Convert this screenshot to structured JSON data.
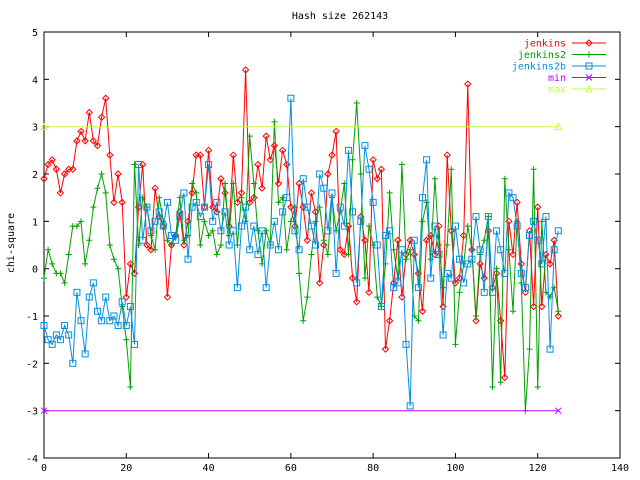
{
  "chart_data": {
    "type": "line",
    "title": "Hash size 262143",
    "xlabel": "",
    "ylabel": "chi-square",
    "xlim": [
      0,
      140
    ],
    "ylim": [
      -4,
      5
    ],
    "x_ticks": [
      0,
      20,
      40,
      60,
      80,
      100,
      120,
      140
    ],
    "y_ticks": [
      -4,
      -3,
      -2,
      -1,
      0,
      1,
      2,
      3,
      4,
      5
    ],
    "grid": false,
    "legend": "top-right",
    "series": [
      {
        "name": "jenkins",
        "color": "#ff0000",
        "marker": "diamond",
        "x": [
          0,
          1,
          2,
          3,
          4,
          5,
          6,
          7,
          8,
          9,
          10,
          11,
          12,
          13,
          14,
          15,
          16,
          17,
          18,
          19,
          20,
          21,
          22,
          23,
          24,
          25,
          26,
          27,
          28,
          29,
          30,
          31,
          32,
          33,
          34,
          35,
          36,
          37,
          38,
          39,
          40,
          41,
          42,
          43,
          44,
          45,
          46,
          47,
          48,
          49,
          50,
          51,
          52,
          53,
          54,
          55,
          56,
          57,
          58,
          59,
          60,
          61,
          62,
          63,
          64,
          65,
          66,
          67,
          68,
          69,
          70,
          71,
          72,
          73,
          74,
          75,
          76,
          77,
          78,
          79,
          80,
          81,
          82,
          83,
          84,
          85,
          86,
          87,
          88,
          89,
          90,
          91,
          92,
          93,
          94,
          95,
          96,
          97,
          98,
          99,
          100,
          101,
          102,
          103,
          104,
          105,
          106,
          107,
          108,
          109,
          110,
          111,
          112,
          113,
          114,
          115,
          116,
          117,
          118,
          119,
          120,
          121,
          122,
          123,
          124,
          125
        ],
        "y": [
          1.9,
          2.2,
          2.3,
          2.1,
          1.6,
          2.0,
          2.1,
          2.1,
          2.7,
          2.9,
          2.7,
          3.3,
          2.7,
          2.6,
          3.2,
          3.6,
          2.4,
          1.4,
          2.0,
          1.4,
          -0.6,
          0.1,
          -0.1,
          1.3,
          2.2,
          0.5,
          0.4,
          1.7,
          1.1,
          0.9,
          -0.6,
          0.5,
          0.7,
          1.2,
          0.5,
          1.0,
          1.6,
          2.4,
          2.4,
          1.3,
          2.5,
          1.3,
          1.2,
          1.9,
          1.6,
          0.9,
          2.4,
          1.4,
          1.6,
          4.2,
          1.4,
          1.5,
          2.2,
          1.7,
          2.8,
          2.3,
          2.6,
          1.8,
          2.5,
          2.2,
          1.3,
          0.9,
          1.8,
          1.3,
          0.6,
          1.6,
          1.2,
          -0.3,
          0.5,
          2.0,
          2.4,
          2.9,
          0.4,
          0.3,
          0.9,
          -0.2,
          -0.7,
          1.1,
          0.6,
          -0.5,
          2.3,
          1.9,
          2.1,
          -1.7,
          -1.1,
          -0.3,
          0.6,
          -0.6,
          0.3,
          0.6,
          0.3,
          -0.1,
          -0.9,
          0.6,
          0.7,
          0.3,
          0.9,
          -0.8,
          2.4,
          0.8,
          -0.3,
          -0.2,
          0.7,
          3.9,
          0.4,
          -1.1,
          0.1,
          -0.2,
          0.8,
          -0.4,
          -0.1,
          -1.1,
          -2.3,
          1.0,
          0.3,
          1.4,
          0.1,
          -0.5,
          0.8,
          -0.8,
          1.3,
          -0.8,
          0.3,
          0.1,
          0.6,
          -1.0
        ]
      },
      {
        "name": "jenkins2",
        "color": "#00a000",
        "marker": "plus",
        "x": [
          0,
          1,
          2,
          3,
          4,
          5,
          6,
          7,
          8,
          9,
          10,
          11,
          12,
          13,
          14,
          15,
          16,
          17,
          18,
          19,
          20,
          21,
          22,
          23,
          24,
          25,
          26,
          27,
          28,
          29,
          30,
          31,
          32,
          33,
          34,
          35,
          36,
          37,
          38,
          39,
          40,
          41,
          42,
          43,
          44,
          45,
          46,
          47,
          48,
          49,
          50,
          51,
          52,
          53,
          54,
          55,
          56,
          57,
          58,
          59,
          60,
          61,
          62,
          63,
          64,
          65,
          66,
          67,
          68,
          69,
          70,
          71,
          72,
          73,
          74,
          75,
          76,
          77,
          78,
          79,
          80,
          81,
          82,
          83,
          84,
          85,
          86,
          87,
          88,
          89,
          90,
          91,
          92,
          93,
          94,
          95,
          96,
          97,
          98,
          99,
          100,
          101,
          102,
          103,
          104,
          105,
          106,
          107,
          108,
          109,
          110,
          111,
          112,
          113,
          114,
          115,
          116,
          117,
          118,
          119,
          120,
          121,
          122,
          123,
          124,
          125
        ],
        "y": [
          -0.2,
          0.4,
          0.1,
          -0.1,
          -0.1,
          -0.3,
          0.3,
          0.9,
          0.9,
          1.0,
          0.1,
          0.6,
          1.3,
          1.7,
          2.0,
          1.6,
          0.5,
          0.2,
          0.0,
          -0.8,
          -1.5,
          -2.5,
          2.2,
          0.5,
          1.5,
          1.3,
          0.7,
          0.4,
          1.5,
          1.0,
          0.6,
          0.5,
          0.7,
          1.5,
          0.6,
          0.7,
          1.8,
          1.6,
          0.5,
          1.0,
          0.7,
          0.8,
          0.3,
          0.5,
          1.8,
          0.7,
          1.8,
          0.5,
          1.5,
          1.0,
          2.8,
          1.8,
          0.8,
          0.1,
          0.8,
          0.5,
          3.1,
          1.4,
          1.5,
          0.4,
          1.0,
          1.3,
          -0.1,
          -1.1,
          -0.6,
          0.3,
          1.0,
          1.3,
          0.6,
          0.3,
          1.5,
          0.8,
          1.2,
          1.8,
          0.3,
          2.3,
          3.5,
          2.0,
          -0.2,
          0.9,
          0.5,
          -0.6,
          -0.8,
          0.1,
          1.6,
          0.4,
          -0.2,
          2.2,
          0.2,
          0.4,
          -1.0,
          -1.1,
          1.0,
          1.4,
          0.2,
          1.9,
          0.5,
          -0.4,
          0.5,
          2.1,
          -1.6,
          -0.5,
          0.1,
          0.9,
          0.4,
          -1.0,
          0.3,
          0.6,
          1.1,
          -2.5,
          0.0,
          -2.4,
          1.9,
          0.4,
          -0.9,
          1.0,
          -0.3,
          -3.0,
          -1.7,
          2.1,
          -2.5,
          1.0,
          -0.5,
          -0.6,
          -0.4,
          -0.9
        ]
      },
      {
        "name": "jenkins2b",
        "color": "#0090e0",
        "marker": "square",
        "x": [
          0,
          1,
          2,
          3,
          4,
          5,
          6,
          7,
          8,
          9,
          10,
          11,
          12,
          13,
          14,
          15,
          16,
          17,
          18,
          19,
          20,
          21,
          22,
          23,
          24,
          25,
          26,
          27,
          28,
          29,
          30,
          31,
          32,
          33,
          34,
          35,
          36,
          37,
          38,
          39,
          40,
          41,
          42,
          43,
          44,
          45,
          46,
          47,
          48,
          49,
          50,
          51,
          52,
          53,
          54,
          55,
          56,
          57,
          58,
          59,
          60,
          61,
          62,
          63,
          64,
          65,
          66,
          67,
          68,
          69,
          70,
          71,
          72,
          73,
          74,
          75,
          76,
          77,
          78,
          79,
          80,
          81,
          82,
          83,
          84,
          85,
          86,
          87,
          88,
          89,
          90,
          91,
          92,
          93,
          94,
          95,
          96,
          97,
          98,
          99,
          100,
          101,
          102,
          103,
          104,
          105,
          106,
          107,
          108,
          109,
          110,
          111,
          112,
          113,
          114,
          115,
          116,
          117,
          118,
          119,
          120,
          121,
          122,
          123,
          124,
          125
        ],
        "y": [
          -1.2,
          -1.5,
          -1.6,
          -1.4,
          -1.5,
          -1.2,
          -1.4,
          -2.0,
          -0.5,
          -1.1,
          -1.8,
          -0.6,
          -0.3,
          -0.9,
          -1.1,
          -0.6,
          -1.1,
          -1.0,
          -1.2,
          -0.7,
          -1.2,
          -0.8,
          -1.6,
          2.2,
          0.6,
          1.3,
          0.8,
          1.0,
          1.2,
          0.9,
          1.4,
          0.7,
          0.6,
          1.1,
          1.6,
          0.2,
          1.3,
          1.4,
          1.1,
          1.3,
          2.2,
          1.0,
          1.4,
          0.8,
          1.2,
          0.5,
          0.8,
          -0.4,
          0.9,
          1.3,
          0.4,
          0.9,
          0.3,
          0.8,
          -0.4,
          0.5,
          1.0,
          0.4,
          1.2,
          1.5,
          3.6,
          0.8,
          0.4,
          1.9,
          1.3,
          0.9,
          0.5,
          2.0,
          1.7,
          0.8,
          1.6,
          -0.1,
          1.3,
          0.9,
          2.5,
          1.2,
          -0.3,
          1.0,
          2.6,
          2.1,
          1.4,
          0.5,
          -0.8,
          0.7,
          0.8,
          -0.4,
          -0.3,
          0.4,
          -1.6,
          -2.9,
          0.6,
          -0.4,
          1.5,
          2.3,
          -0.2,
          0.9,
          0.3,
          -1.4,
          -0.1,
          -0.2,
          0.9,
          0.2,
          -0.3,
          0.1,
          0.2,
          1.1,
          0.4,
          -0.5,
          1.1,
          -0.5,
          0.8,
          0.4,
          -0.1,
          1.6,
          1.5,
          0.9,
          -0.1,
          -0.4,
          0.7,
          1.0,
          0.6,
          0.1,
          1.1,
          -1.7,
          0.4,
          0.8
        ]
      },
      {
        "name": "min",
        "color": "#c000ff",
        "marker": "cross",
        "x": [
          0,
          125
        ],
        "y": [
          -3,
          -3
        ]
      },
      {
        "name": "max",
        "color": "#c0ff40",
        "marker": "triangle",
        "x": [
          0,
          125
        ],
        "y": [
          3,
          3
        ]
      }
    ]
  }
}
